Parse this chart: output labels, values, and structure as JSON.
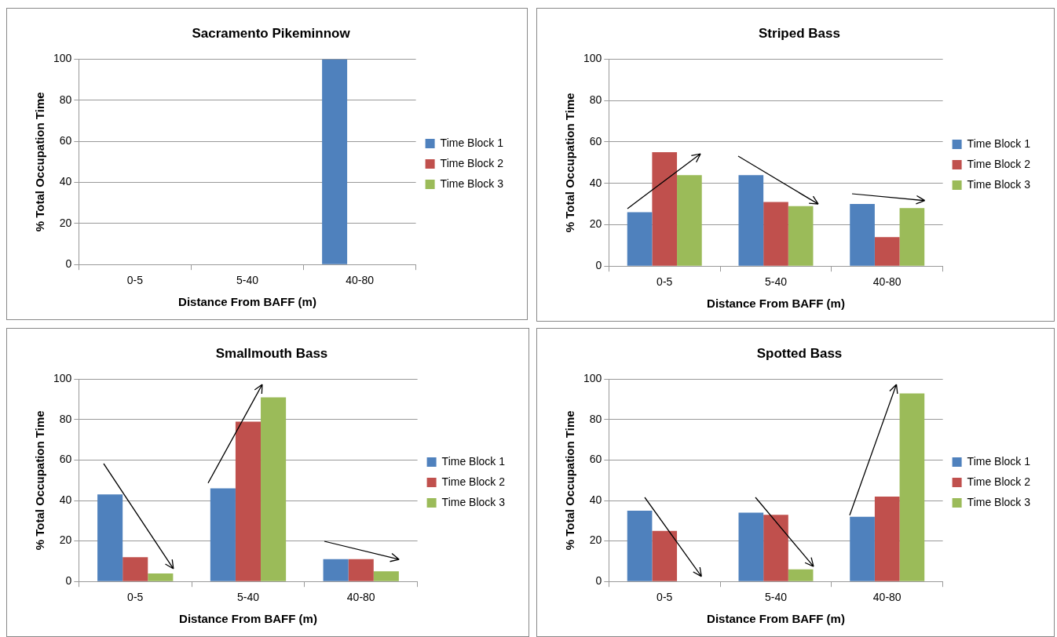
{
  "chart_data": [
    {
      "type": "bar",
      "title": "Sacramento Pikeminnow",
      "xlabel": "Distance From BAFF (m)",
      "ylabel": "% Total Occupation Time",
      "categories": [
        "0-5",
        "5-40",
        "40-80"
      ],
      "ylim": [
        0,
        100
      ],
      "yticks": [
        0,
        20,
        40,
        60,
        80,
        100
      ],
      "grid": "y",
      "legend": "right",
      "series": [
        {
          "name": "Time Block 1",
          "color": "#4f81bd",
          "values": [
            0,
            0,
            100
          ]
        },
        {
          "name": "Time Block 2",
          "color": "#c0504d",
          "values": [
            0,
            0,
            0
          ]
        },
        {
          "name": "Time Block 3",
          "color": "#9bbb59",
          "values": [
            0,
            0,
            0
          ]
        }
      ]
    },
    {
      "type": "bar",
      "title": "Striped Bass",
      "xlabel": "Distance From BAFF (m)",
      "ylabel": "% Total Occupation Time",
      "categories": [
        "0-5",
        "5-40",
        "40-80"
      ],
      "ylim": [
        0,
        100
      ],
      "yticks": [
        0,
        20,
        40,
        60,
        80,
        100
      ],
      "grid": "y",
      "legend": "right",
      "series": [
        {
          "name": "Time Block 1",
          "color": "#4f81bd",
          "values": [
            26,
            44,
            30
          ]
        },
        {
          "name": "Time Block 2",
          "color": "#c0504d",
          "values": [
            55,
            31,
            14
          ]
        },
        {
          "name": "Time Block 3",
          "color": "#9bbb59",
          "values": [
            44,
            29,
            28
          ]
        }
      ]
    },
    {
      "type": "bar",
      "title": "Smallmouth Bass",
      "xlabel": "Distance From BAFF (m)",
      "ylabel": "% Total Occupation Time",
      "categories": [
        "0-5",
        "5-40",
        "40-80"
      ],
      "ylim": [
        0,
        100
      ],
      "yticks": [
        0,
        20,
        40,
        60,
        80,
        100
      ],
      "grid": "y",
      "legend": "right",
      "series": [
        {
          "name": "Time Block 1",
          "color": "#4f81bd",
          "values": [
            43,
            46,
            11
          ]
        },
        {
          "name": "Time Block 2",
          "color": "#c0504d",
          "values": [
            12,
            79,
            11
          ]
        },
        {
          "name": "Time Block 3",
          "color": "#9bbb59",
          "values": [
            4,
            91,
            5
          ]
        }
      ]
    },
    {
      "type": "bar",
      "title": "Spotted Bass",
      "xlabel": "Distance From BAFF (m)",
      "ylabel": "% Total Occupation Time",
      "categories": [
        "0-5",
        "5-40",
        "40-80"
      ],
      "ylim": [
        0,
        100
      ],
      "yticks": [
        0,
        20,
        40,
        60,
        80,
        100
      ],
      "grid": "y",
      "legend": "right",
      "series": [
        {
          "name": "Time Block 1",
          "color": "#4f81bd",
          "values": [
            35,
            34,
            32
          ]
        },
        {
          "name": "Time Block 2",
          "color": "#c0504d",
          "values": [
            25,
            33,
            42
          ]
        },
        {
          "name": "Time Block 3",
          "color": "#9bbb59",
          "values": [
            0,
            6,
            93
          ]
        }
      ]
    }
  ]
}
